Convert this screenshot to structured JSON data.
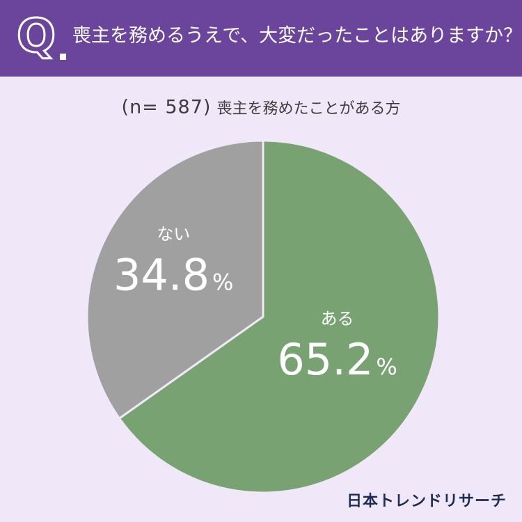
{
  "header": {
    "q_label": "Q",
    "question": "喪主を務めるうえで、大変だったことはありますか？"
  },
  "subtitle": {
    "n_label": "(n= 587)",
    "condition": "喪主を務めたことがある方"
  },
  "chart_data": {
    "type": "pie",
    "start_angle_deg": 0,
    "direction": "clockwise",
    "slices": [
      {
        "label": "ある",
        "value": 65.2,
        "value_text": "65.2",
        "unit": "%",
        "color": "#79a273"
      },
      {
        "label": "ない",
        "value": 34.8,
        "value_text": "34.8",
        "unit": "%",
        "color": "#a0a0a0"
      }
    ]
  },
  "colors": {
    "header_bg": "#6b459b",
    "page_bg": "#f0e8f8",
    "slice_border": "#f0e8f8",
    "brand_text": "#1d2c52"
  },
  "footer": {
    "brand": "日本トレンドリサーチ"
  }
}
